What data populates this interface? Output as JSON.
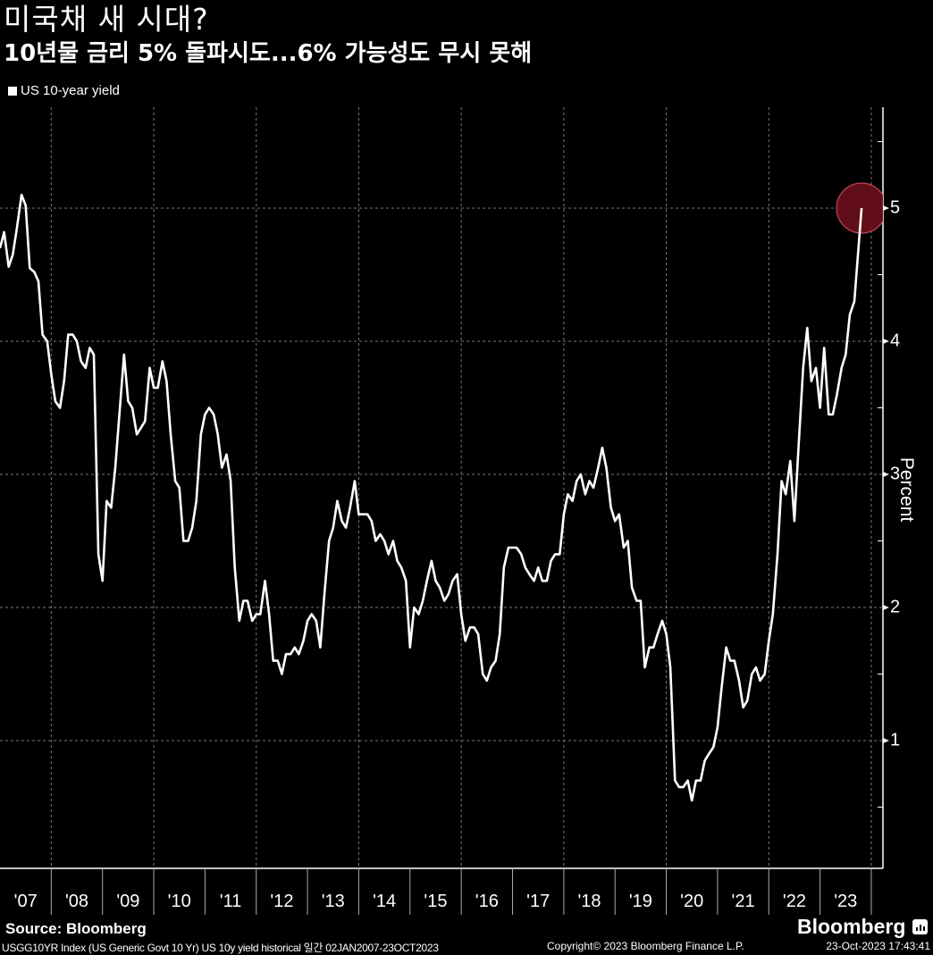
{
  "header": {
    "title": "미국채 새 시대?",
    "subtitle": "10년물 금리 5% 돌파시도...6% 가능성도 무시 못해"
  },
  "legend": {
    "items": [
      {
        "label": "US 10-year yield",
        "color": "#ffffff"
      }
    ]
  },
  "footer": {
    "source": "Source: Bloomberg",
    "index_desc": "USGG10YR Index (US Generic Govt 10 Yr) US 10y yield historical  일간 02JAN2007-23OCT2023",
    "copyright": "Copyright© 2023 Bloomberg Finance L.P.",
    "timestamp": "23-Oct-2023 17:43:41",
    "brand": "Bloomberg"
  },
  "colors": {
    "background": "#000000",
    "line": "#ffffff",
    "grid": "#777777",
    "highlight_fill": "#6a0f1c",
    "highlight_stroke": "#c04658"
  },
  "chart_data": {
    "type": "line",
    "title": "미국채 새 시대?",
    "subtitle": "10년물 금리 5% 돌파시도...6% 가능성도 무시 못해",
    "xlabel": "",
    "ylabel": "Percent",
    "ylim": [
      0.05,
      5.75
    ],
    "xlim": [
      2007.0,
      2023.9
    ],
    "yticks": [
      1,
      2,
      3,
      4,
      5
    ],
    "xtick_labels": [
      "'07",
      "'08",
      "'09",
      "'10",
      "'11",
      "'12",
      "'13",
      "'14",
      "'15",
      "'16",
      "'17",
      "'18",
      "'19",
      "'20",
      "'21",
      "'22",
      "'23"
    ],
    "grid": true,
    "legend_position": "top-left",
    "annotation": {
      "type": "circle",
      "x": 2023.81,
      "y": 5.0,
      "note": "10-year yield near 5%"
    },
    "series": [
      {
        "name": "US 10-year yield",
        "x": [
          2007.0,
          2007.08,
          2007.17,
          2007.25,
          2007.33,
          2007.42,
          2007.5,
          2007.58,
          2007.67,
          2007.75,
          2007.83,
          2007.92,
          2008.0,
          2008.08,
          2008.17,
          2008.25,
          2008.33,
          2008.42,
          2008.5,
          2008.58,
          2008.67,
          2008.75,
          2008.83,
          2008.92,
          2009.0,
          2009.08,
          2009.17,
          2009.25,
          2009.33,
          2009.42,
          2009.5,
          2009.58,
          2009.67,
          2009.75,
          2009.83,
          2009.92,
          2010.0,
          2010.08,
          2010.17,
          2010.25,
          2010.33,
          2010.42,
          2010.5,
          2010.58,
          2010.67,
          2010.75,
          2010.83,
          2010.92,
          2011.0,
          2011.08,
          2011.17,
          2011.25,
          2011.33,
          2011.42,
          2011.5,
          2011.58,
          2011.67,
          2011.75,
          2011.83,
          2011.92,
          2012.0,
          2012.08,
          2012.17,
          2012.25,
          2012.33,
          2012.42,
          2012.5,
          2012.58,
          2012.67,
          2012.75,
          2012.83,
          2012.92,
          2013.0,
          2013.08,
          2013.17,
          2013.25,
          2013.33,
          2013.42,
          2013.5,
          2013.58,
          2013.67,
          2013.75,
          2013.83,
          2013.92,
          2014.0,
          2014.08,
          2014.17,
          2014.25,
          2014.33,
          2014.42,
          2014.5,
          2014.58,
          2014.67,
          2014.75,
          2014.83,
          2014.92,
          2015.0,
          2015.08,
          2015.17,
          2015.25,
          2015.33,
          2015.42,
          2015.5,
          2015.58,
          2015.67,
          2015.75,
          2015.83,
          2015.92,
          2016.0,
          2016.08,
          2016.17,
          2016.25,
          2016.33,
          2016.42,
          2016.5,
          2016.58,
          2016.67,
          2016.75,
          2016.83,
          2016.92,
          2017.0,
          2017.08,
          2017.17,
          2017.25,
          2017.33,
          2017.42,
          2017.5,
          2017.58,
          2017.67,
          2017.75,
          2017.83,
          2017.92,
          2018.0,
          2018.08,
          2018.17,
          2018.25,
          2018.33,
          2018.42,
          2018.5,
          2018.58,
          2018.67,
          2018.75,
          2018.83,
          2018.92,
          2019.0,
          2019.08,
          2019.17,
          2019.25,
          2019.33,
          2019.42,
          2019.5,
          2019.58,
          2019.67,
          2019.75,
          2019.83,
          2019.92,
          2020.0,
          2020.08,
          2020.17,
          2020.25,
          2020.33,
          2020.42,
          2020.5,
          2020.58,
          2020.67,
          2020.75,
          2020.83,
          2020.92,
          2021.0,
          2021.08,
          2021.17,
          2021.25,
          2021.33,
          2021.42,
          2021.5,
          2021.58,
          2021.67,
          2021.75,
          2021.83,
          2021.92,
          2022.0,
          2022.08,
          2022.17,
          2022.25,
          2022.33,
          2022.42,
          2022.5,
          2022.58,
          2022.67,
          2022.75,
          2022.83,
          2022.92,
          2023.0,
          2023.08,
          2023.17,
          2023.25,
          2023.33,
          2023.42,
          2023.5,
          2023.58,
          2023.67,
          2023.75,
          2023.81
        ],
        "values": [
          4.7,
          4.82,
          4.56,
          4.65,
          4.85,
          5.1,
          5.02,
          4.55,
          4.52,
          4.45,
          4.05,
          4.0,
          3.75,
          3.55,
          3.5,
          3.7,
          4.05,
          4.05,
          4.0,
          3.85,
          3.8,
          3.95,
          3.9,
          2.4,
          2.2,
          2.8,
          2.75,
          3.05,
          3.45,
          3.9,
          3.55,
          3.5,
          3.3,
          3.35,
          3.4,
          3.8,
          3.65,
          3.65,
          3.85,
          3.7,
          3.3,
          2.95,
          2.9,
          2.5,
          2.5,
          2.6,
          2.8,
          3.3,
          3.45,
          3.5,
          3.45,
          3.3,
          3.05,
          3.15,
          2.95,
          2.3,
          1.9,
          2.05,
          2.05,
          1.9,
          1.95,
          1.95,
          2.2,
          1.95,
          1.6,
          1.6,
          1.5,
          1.65,
          1.65,
          1.7,
          1.65,
          1.75,
          1.9,
          1.95,
          1.9,
          1.7,
          2.1,
          2.5,
          2.6,
          2.8,
          2.65,
          2.6,
          2.75,
          2.95,
          2.7,
          2.7,
          2.7,
          2.65,
          2.5,
          2.55,
          2.5,
          2.4,
          2.5,
          2.35,
          2.3,
          2.2,
          1.7,
          2.0,
          1.95,
          2.05,
          2.2,
          2.35,
          2.2,
          2.15,
          2.05,
          2.1,
          2.2,
          2.25,
          1.95,
          1.75,
          1.85,
          1.85,
          1.8,
          1.5,
          1.45,
          1.55,
          1.6,
          1.8,
          2.3,
          2.45,
          2.45,
          2.45,
          2.4,
          2.3,
          2.25,
          2.2,
          2.3,
          2.2,
          2.2,
          2.35,
          2.4,
          2.4,
          2.7,
          2.85,
          2.8,
          2.95,
          3.0,
          2.85,
          2.95,
          2.9,
          3.05,
          3.2,
          3.05,
          2.75,
          2.65,
          2.7,
          2.45,
          2.5,
          2.15,
          2.05,
          2.05,
          1.55,
          1.7,
          1.7,
          1.8,
          1.9,
          1.8,
          1.55,
          0.7,
          0.65,
          0.65,
          0.7,
          0.55,
          0.7,
          0.7,
          0.85,
          0.9,
          0.95,
          1.1,
          1.4,
          1.7,
          1.6,
          1.6,
          1.45,
          1.25,
          1.3,
          1.5,
          1.55,
          1.45,
          1.5,
          1.75,
          1.95,
          2.4,
          2.95,
          2.85,
          3.1,
          2.65,
          3.2,
          3.8,
          4.1,
          3.7,
          3.8,
          3.5,
          3.95,
          3.45,
          3.45,
          3.6,
          3.8,
          3.9,
          4.2,
          4.3,
          4.7,
          5.0
        ]
      }
    ]
  }
}
